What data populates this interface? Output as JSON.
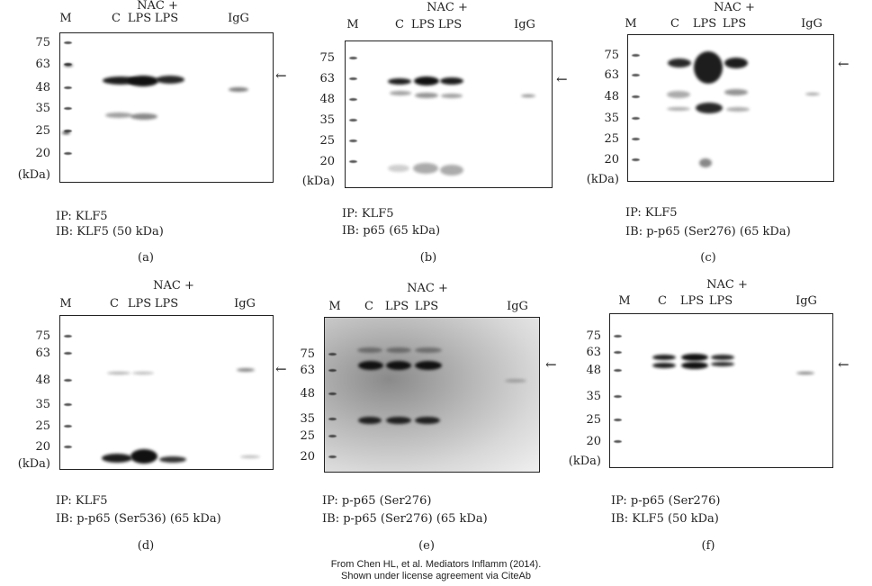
{
  "panels": [
    {
      "id": "a",
      "tag": "(a)",
      "lanes": {
        "m": "M",
        "c": "C",
        "lps": "LPS",
        "nac": "NAC +",
        "nac_lps": "LPS",
        "igg": "IgG"
      },
      "markers": [
        "75",
        "63",
        "48",
        "35",
        "25",
        "20",
        "(kDa)"
      ],
      "arrow": "←",
      "ip": "IP: KLF5",
      "ib": "IB: KLF5 (50 kDa)"
    },
    {
      "id": "b",
      "tag": "(b)",
      "lanes": {
        "m": "M",
        "c": "C",
        "lps": "LPS",
        "nac": "NAC +",
        "nac_lps": "LPS",
        "igg": "IgG"
      },
      "markers": [
        "75",
        "63",
        "48",
        "35",
        "25",
        "20",
        "(kDa)"
      ],
      "arrow": "←",
      "ip": "IP: KLF5",
      "ib": "IB: p65 (65 kDa)"
    },
    {
      "id": "c",
      "tag": "(c)",
      "lanes": {
        "m": "M",
        "c": "C",
        "lps": "LPS",
        "nac": "NAC +",
        "nac_lps": "LPS",
        "igg": "IgG"
      },
      "markers": [
        "75",
        "63",
        "48",
        "35",
        "25",
        "20",
        "(kDa)"
      ],
      "arrow": "←",
      "ip": "IP: KLF5",
      "ib": "IB: p-p65 (Ser276) (65 kDa)"
    },
    {
      "id": "d",
      "tag": "(d)",
      "lanes": {
        "m": "M",
        "c": "C",
        "lps": "LPS",
        "nac": "NAC +",
        "nac_lps": "LPS",
        "igg": "IgG"
      },
      "markers": [
        "75",
        "63",
        "48",
        "35",
        "25",
        "20",
        "(kDa)"
      ],
      "arrow": "←",
      "ip": "IP: KLF5",
      "ib": "IB: p-p65 (Ser536) (65 kDa)"
    },
    {
      "id": "e",
      "tag": "(e)",
      "lanes": {
        "m": "M",
        "c": "C",
        "lps": "LPS",
        "nac": "NAC +",
        "nac_lps": "LPS",
        "igg": "IgG"
      },
      "markers": [
        "75",
        "63",
        "48",
        "35",
        "25",
        "20"
      ],
      "arrow": "←",
      "ip": "IP: p-p65 (Ser276)",
      "ib": "IB: p-p65 (Ser276) (65 kDa)"
    },
    {
      "id": "f",
      "tag": "(f)",
      "lanes": {
        "m": "M",
        "c": "C",
        "lps": "LPS",
        "nac": "NAC +",
        "nac_lps": "LPS",
        "igg": "IgG"
      },
      "markers": [
        "75",
        "63",
        "48",
        "35",
        "25",
        "20",
        "(kDa)"
      ],
      "arrow": "←",
      "ip": "IP: p-p65 (Ser276)",
      "ib": "IB: KLF5 (50 kDa)"
    }
  ],
  "footer": {
    "line1": "From Chen HL, et al. Mediators Inflamm (2014).",
    "line2": "Shown under license agreement via CiteAb"
  }
}
